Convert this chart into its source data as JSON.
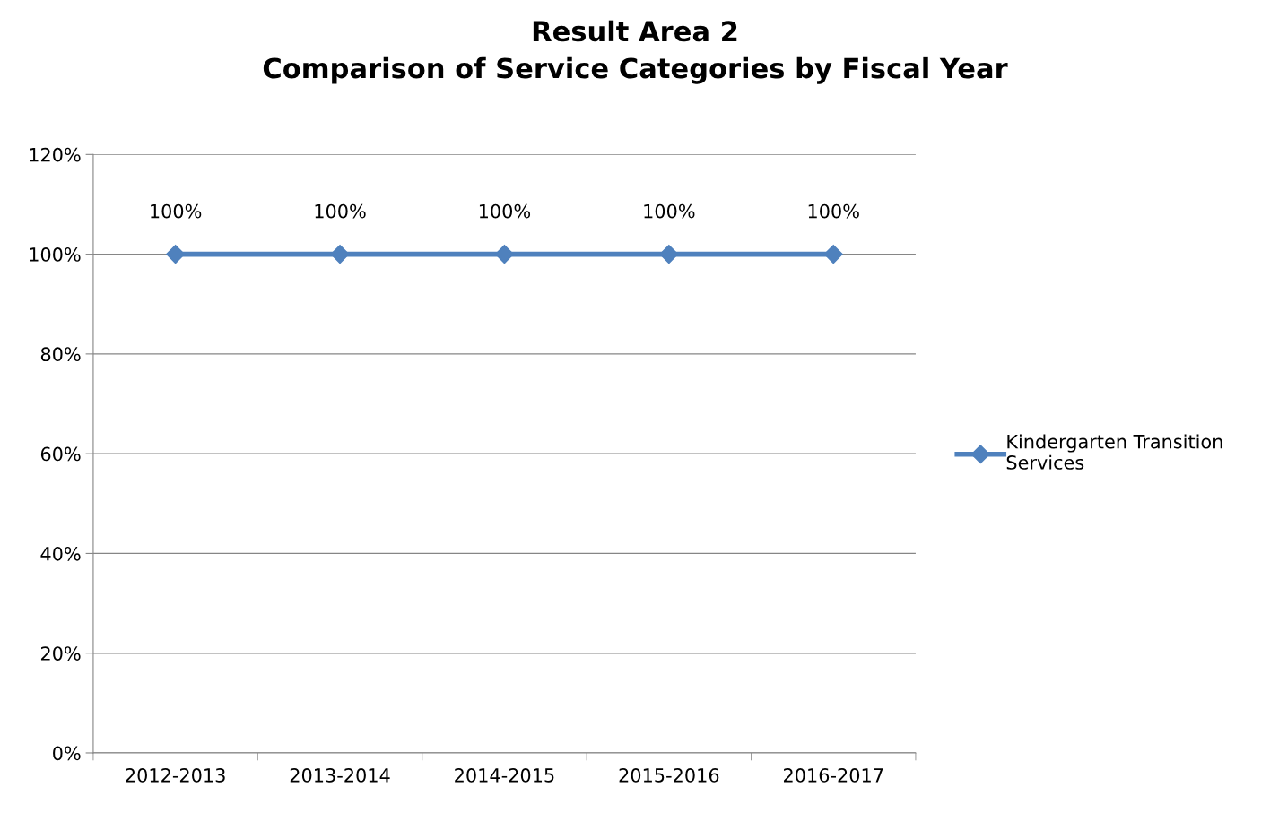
{
  "chart_data": {
    "type": "line",
    "title": "Result Area 2\nComparison of Service Categories by Fiscal Year",
    "categories": [
      "2012-2013",
      "2013-2014",
      "2014-2015",
      "2015-2016",
      "2016-2017"
    ],
    "series": [
      {
        "name": "Kindergarten Transition Services",
        "color": "#4f81bd",
        "values": [
          100,
          100,
          100,
          100,
          100
        ],
        "value_labels": [
          "100%",
          "100%",
          "100%",
          "100%",
          "100%"
        ]
      }
    ],
    "ylim": [
      0,
      120
    ],
    "yticks": [
      {
        "value": 0,
        "label": "0%"
      },
      {
        "value": 20,
        "label": "20%"
      },
      {
        "value": 40,
        "label": "40%"
      },
      {
        "value": 60,
        "label": "60%"
      },
      {
        "value": 80,
        "label": "80%"
      },
      {
        "value": 100,
        "label": "100%"
      },
      {
        "value": 120,
        "label": "120%"
      }
    ],
    "grid": "y",
    "legend": "right",
    "marker": "diamond",
    "line_style": "solid"
  }
}
